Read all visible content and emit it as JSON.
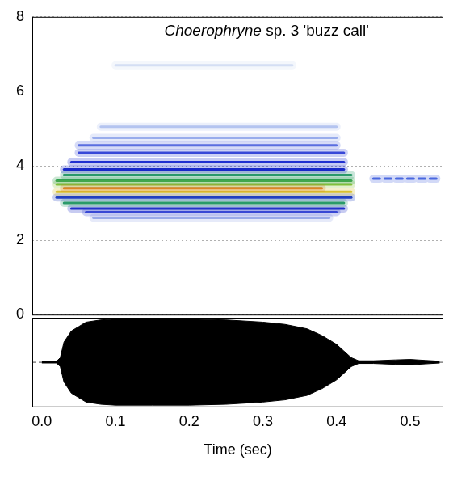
{
  "chart_data": [
    {
      "type": "spectrogram",
      "title": "Choerophryne sp. 3 'buzz call'",
      "xlim": [
        -0.013,
        0.545
      ],
      "ylim": [
        0,
        8
      ],
      "yticks": [
        0,
        2,
        4,
        6,
        8
      ],
      "tick_labels": "y",
      "grid": true,
      "bands": [
        {
          "frequency": 6.7,
          "start": 0.1,
          "end": 0.34,
          "color": "#d4def4"
        },
        {
          "frequency": 5.05,
          "start": 0.08,
          "end": 0.4,
          "color": "#b4c4f0"
        },
        {
          "frequency": 4.75,
          "start": 0.07,
          "end": 0.4,
          "color": "#98acec"
        },
        {
          "frequency": 4.55,
          "start": 0.05,
          "end": 0.4,
          "color": "#5a6ee0"
        },
        {
          "frequency": 4.35,
          "start": 0.05,
          "end": 0.41,
          "color": "#3848d8"
        },
        {
          "frequency": 4.1,
          "start": 0.04,
          "end": 0.41,
          "color": "#2030d0"
        },
        {
          "frequency": 3.9,
          "start": 0.03,
          "end": 0.41,
          "color": "#1828c8"
        },
        {
          "frequency": 3.75,
          "start": 0.03,
          "end": 0.42,
          "color": "#2a9a6a"
        },
        {
          "frequency": 3.6,
          "start": 0.02,
          "end": 0.42,
          "color": "#30a050"
        },
        {
          "frequency": 3.5,
          "start": 0.02,
          "end": 0.42,
          "color": "#8cc43a"
        },
        {
          "frequency": 3.3,
          "start": 0.02,
          "end": 0.42,
          "color": "#d8c030"
        },
        {
          "frequency": 3.15,
          "start": 0.02,
          "end": 0.42,
          "color": "#2040c0"
        },
        {
          "frequency": 3.4,
          "start": 0.03,
          "end": 0.38,
          "color": "#e07020"
        },
        {
          "frequency": 3.0,
          "start": 0.03,
          "end": 0.41,
          "color": "#2a9a6a"
        },
        {
          "frequency": 2.85,
          "start": 0.04,
          "end": 0.41,
          "color": "#2030c8"
        },
        {
          "frequency": 2.75,
          "start": 0.06,
          "end": 0.4,
          "color": "#4050d8"
        },
        {
          "frequency": 2.6,
          "start": 0.07,
          "end": 0.39,
          "color": "#9aaae8"
        },
        {
          "frequency": 3.65,
          "start": 0.45,
          "end": 0.54,
          "color": "#4a68e0",
          "line_style": "dashed"
        }
      ]
    },
    {
      "type": "waveform",
      "x_label": "Time (sec)",
      "xlim": [
        -0.013,
        0.545
      ],
      "xticks": [
        {
          "value": 0,
          "label": "0.0"
        },
        {
          "value": 0.1,
          "label": "0.1"
        },
        {
          "value": 0.2,
          "label": "0.2"
        },
        {
          "value": 0.3,
          "label": "0.3"
        },
        {
          "value": 0.4,
          "label": "0.4"
        },
        {
          "value": 0.5,
          "label": "0.5"
        }
      ],
      "ylim": [
        -1,
        1
      ],
      "yticks": [
        0
      ],
      "tick_labels": "x",
      "grid": true,
      "color": "#000000",
      "x": [
        0.0,
        0.02,
        0.025,
        0.03,
        0.04,
        0.05,
        0.06,
        0.08,
        0.1,
        0.15,
        0.2,
        0.25,
        0.3,
        0.33,
        0.36,
        0.38,
        0.4,
        0.41,
        0.42,
        0.43,
        0.45,
        0.48,
        0.5,
        0.52,
        0.54
      ],
      "envelope_max": [
        0.02,
        0.02,
        0.1,
        0.45,
        0.7,
        0.8,
        0.9,
        0.95,
        0.97,
        0.97,
        0.97,
        0.95,
        0.9,
        0.85,
        0.75,
        0.6,
        0.4,
        0.25,
        0.1,
        0.03,
        0.03,
        0.05,
        0.06,
        0.04,
        0.02
      ],
      "envelope_min": [
        -0.02,
        -0.02,
        -0.1,
        -0.45,
        -0.7,
        -0.8,
        -0.9,
        -0.95,
        -0.97,
        -0.97,
        -0.97,
        -0.95,
        -0.9,
        -0.85,
        -0.75,
        -0.6,
        -0.4,
        -0.25,
        -0.1,
        -0.03,
        -0.03,
        -0.05,
        -0.06,
        -0.04,
        -0.02
      ]
    }
  ]
}
